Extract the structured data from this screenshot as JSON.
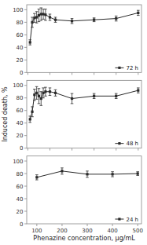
{
  "chart_data": [
    {
      "type": "line",
      "x": [
        10,
        20,
        30,
        40,
        50,
        60,
        70,
        80,
        100,
        125,
        200,
        300,
        400,
        500
      ],
      "series": [
        {
          "name": "72 h",
          "color": "#2a2a2a",
          "marker": "square",
          "values": [
            48,
            80,
            87,
            88,
            91,
            93,
            93,
            92,
            88,
            84,
            82,
            84,
            86,
            95
          ],
          "yerr": [
            4,
            8,
            7,
            9,
            10,
            10,
            8,
            9,
            5,
            4,
            4,
            3,
            4,
            4
          ]
        }
      ],
      "xlim": [
        -5,
        515
      ],
      "xticks": [
        0,
        100,
        200,
        300,
        400,
        500
      ],
      "ylim": [
        0,
        108
      ],
      "yticks": [
        0,
        20,
        40,
        60,
        80,
        100
      ],
      "legend": "lower right",
      "tick_labels": "y"
    },
    {
      "type": "line",
      "ylabel": "Induced death, %",
      "x": [
        10,
        20,
        30,
        40,
        50,
        60,
        70,
        80,
        100,
        125,
        200,
        300,
        400,
        500
      ],
      "series": [
        {
          "name": "48 h",
          "color": "#2a2a2a",
          "marker": "square",
          "values": [
            46,
            58,
            85,
            88,
            83,
            79,
            88,
            90,
            90,
            88,
            79,
            83,
            83,
            92
          ],
          "yerr": [
            5,
            8,
            9,
            10,
            12,
            11,
            8,
            7,
            6,
            5,
            8,
            4,
            4,
            4
          ]
        }
      ],
      "xlim": [
        -5,
        515
      ],
      "xticks": [
        0,
        100,
        200,
        300,
        400,
        500
      ],
      "ylim": [
        0,
        108
      ],
      "yticks": [
        0,
        20,
        40,
        60,
        80,
        100
      ],
      "legend": "lower right",
      "tick_labels": "y"
    },
    {
      "type": "line",
      "xlabel": "Phenazine concentration, μg/mL",
      "x": [
        100,
        200,
        300,
        400,
        500
      ],
      "series": [
        {
          "name": "24 h",
          "color": "#2a2a2a",
          "marker": "square",
          "values": [
            74,
            84,
            79,
            79,
            80
          ],
          "yerr": [
            4,
            5,
            5,
            4,
            3
          ]
        }
      ],
      "xlim": [
        60,
        515
      ],
      "xticks": [
        100,
        200,
        300,
        400,
        500
      ],
      "ylim": [
        0,
        108
      ],
      "yticks": [
        0,
        20,
        40,
        60,
        80,
        100
      ],
      "legend": "lower right"
    }
  ]
}
